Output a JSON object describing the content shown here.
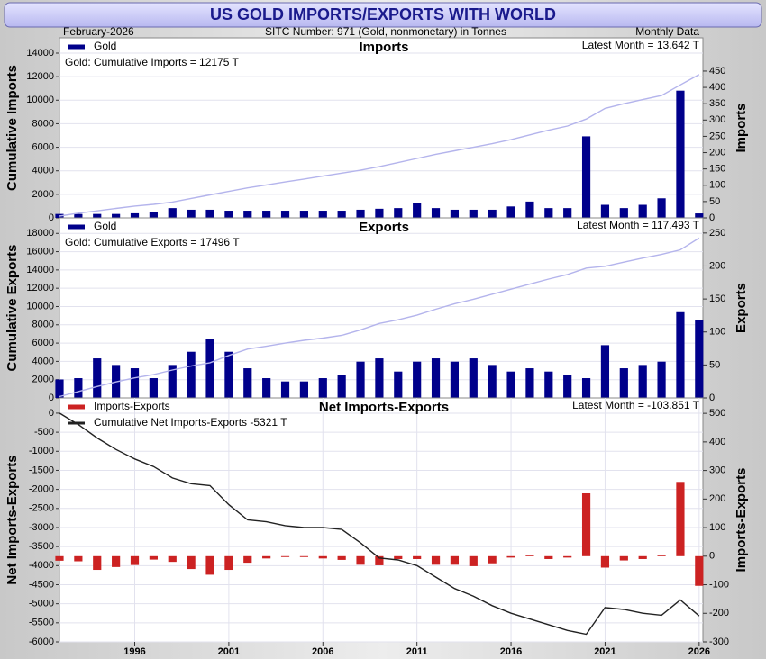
{
  "header": {
    "title": "US GOLD IMPORTS/EXPORTS WITH WORLD",
    "date": "February-2026",
    "subtitle": "SITC Number: 971 (Gold, nonmonetary) in Tonnes",
    "frequency": "Monthly Data"
  },
  "chart_data": [
    {
      "type": "combo",
      "title": "Imports",
      "annotation": "Latest Month = 13.642 T",
      "ylabel": "Cumulative Imports",
      "y2label": "Imports",
      "x": [
        1992,
        1993,
        1994,
        1995,
        1996,
        1997,
        1998,
        1999,
        2000,
        2001,
        2002,
        2003,
        2004,
        2005,
        2006,
        2007,
        2008,
        2009,
        2010,
        2011,
        2012,
        2013,
        2014,
        2015,
        2016,
        2017,
        2018,
        2019,
        2020,
        2021,
        2022,
        2023,
        2024,
        2025,
        2026
      ],
      "xlim": [
        1992,
        2026.2
      ],
      "series": [
        {
          "name": "Gold",
          "kind": "bar",
          "axis": "y2",
          "color": "#00008b",
          "legend_swatch": true,
          "values": [
            12,
            12,
            12,
            12,
            14,
            18,
            30,
            25,
            25,
            22,
            22,
            22,
            22,
            22,
            22,
            22,
            25,
            28,
            30,
            45,
            30,
            25,
            25,
            25,
            35,
            50,
            30,
            30,
            250,
            40,
            30,
            40,
            60,
            390,
            13.642
          ]
        },
        {
          "name": "Gold: Cumulative Imports = 12175 T",
          "kind": "line",
          "axis": "y",
          "color": "#b4b4ec",
          "legend_swatch": false,
          "values": [
            150,
            400,
            600,
            800,
            1000,
            1150,
            1350,
            1650,
            1950,
            2250,
            2550,
            2800,
            3050,
            3300,
            3550,
            3800,
            4050,
            4350,
            4700,
            5050,
            5400,
            5700,
            6000,
            6300,
            6650,
            7050,
            7450,
            7800,
            8400,
            9300,
            9700,
            10050,
            10400,
            11300,
            12175
          ]
        }
      ],
      "ylim": [
        0,
        15300
      ],
      "yticks": [
        0,
        2000,
        4000,
        6000,
        8000,
        10000,
        12000,
        14000
      ],
      "y2lim": [
        0,
        552
      ],
      "y2ticks": [
        0,
        50,
        100,
        150,
        200,
        250,
        300,
        350,
        400,
        450
      ],
      "grid": true
    },
    {
      "type": "combo",
      "title": "Exports",
      "annotation": "Latest Month = 117.493 T",
      "ylabel": "Cumulative Exports",
      "y2label": "Exports",
      "x": [
        1992,
        1993,
        1994,
        1995,
        1996,
        1997,
        1998,
        1999,
        2000,
        2001,
        2002,
        2003,
        2004,
        2005,
        2006,
        2007,
        2008,
        2009,
        2010,
        2011,
        2012,
        2013,
        2014,
        2015,
        2016,
        2017,
        2018,
        2019,
        2020,
        2021,
        2022,
        2023,
        2024,
        2025,
        2026
      ],
      "xlim": [
        1992,
        2026.2
      ],
      "series": [
        {
          "name": "Gold",
          "kind": "bar",
          "axis": "y2",
          "color": "#00008b",
          "legend_swatch": true,
          "values": [
            28,
            30,
            60,
            50,
            45,
            30,
            50,
            70,
            90,
            70,
            45,
            30,
            25,
            25,
            30,
            35,
            55,
            60,
            40,
            55,
            60,
            55,
            60,
            50,
            40,
            45,
            40,
            35,
            30,
            80,
            45,
            50,
            55,
            130,
            117.493
          ]
        },
        {
          "name": "Gold: Cumulative Exports = 17496 T",
          "kind": "line",
          "axis": "y",
          "color": "#b4b4ec",
          "legend_swatch": false,
          "values": [
            150,
            700,
            1250,
            1750,
            2200,
            2550,
            3050,
            3500,
            3850,
            4650,
            5350,
            5650,
            6000,
            6300,
            6550,
            6850,
            7450,
            8150,
            8550,
            9050,
            9700,
            10300,
            10800,
            11350,
            11900,
            12450,
            13000,
            13500,
            14200,
            14400,
            14850,
            15300,
            15700,
            16200,
            17496
          ]
        }
      ],
      "ylim": [
        0,
        19700
      ],
      "yticks": [
        0,
        2000,
        4000,
        6000,
        8000,
        10000,
        12000,
        14000,
        16000,
        18000
      ],
      "y2lim": [
        0,
        273
      ],
      "y2ticks": [
        0,
        50,
        100,
        150,
        200,
        250
      ],
      "grid": true
    },
    {
      "type": "combo",
      "title": "Net Imports-Exports",
      "annotation": "Latest Month = -103.851 T",
      "ylabel": "Net Imports-Exports",
      "y2label": "Imports-Exports",
      "x": [
        1992,
        1993,
        1994,
        1995,
        1996,
        1997,
        1998,
        1999,
        2000,
        2001,
        2002,
        2003,
        2004,
        2005,
        2006,
        2007,
        2008,
        2009,
        2010,
        2011,
        2012,
        2013,
        2014,
        2015,
        2016,
        2017,
        2018,
        2019,
        2020,
        2021,
        2022,
        2023,
        2024,
        2025,
        2026
      ],
      "xlim": [
        1992,
        2026.2
      ],
      "xticks": [
        1996,
        2001,
        2006,
        2011,
        2016,
        2021,
        2026
      ],
      "series": [
        {
          "name": "Imports-Exports",
          "kind": "bar",
          "axis": "y2",
          "color": "#cc2222",
          "legend_swatch": true,
          "values": [
            -16,
            -18,
            -48,
            -38,
            -31,
            -12,
            -20,
            -45,
            -65,
            -48,
            -23,
            -8,
            -3,
            -3,
            -8,
            -13,
            -30,
            -32,
            -10,
            -10,
            -30,
            -30,
            -35,
            -25,
            -5,
            5,
            -10,
            -5,
            220,
            -40,
            -15,
            -10,
            5,
            260,
            -103.851
          ]
        },
        {
          "name": "Cumulative Net Imports-Exports -5321 T",
          "kind": "line",
          "axis": "y",
          "color": "#222222",
          "legend_swatch": true,
          "values": [
            0,
            -300,
            -650,
            -950,
            -1200,
            -1400,
            -1700,
            -1850,
            -1900,
            -2400,
            -2800,
            -2850,
            -2950,
            -3000,
            -3000,
            -3050,
            -3400,
            -3800,
            -3850,
            -4000,
            -4300,
            -4600,
            -4800,
            -5050,
            -5250,
            -5400,
            -5550,
            -5700,
            -5800,
            -5100,
            -5150,
            -5250,
            -5300,
            -4900,
            -5321
          ]
        }
      ],
      "ylim": [
        -6000,
        400
      ],
      "yticks": [
        0,
        -500,
        -1000,
        -1500,
        -2000,
        -2500,
        -3000,
        -3500,
        -4000,
        -4500,
        -5000,
        -5500,
        -6000
      ],
      "y2lim": [
        -300,
        554
      ],
      "y2ticks": [
        -300,
        -200,
        -100,
        0,
        100,
        200,
        300,
        400,
        500
      ],
      "grid": true
    }
  ]
}
